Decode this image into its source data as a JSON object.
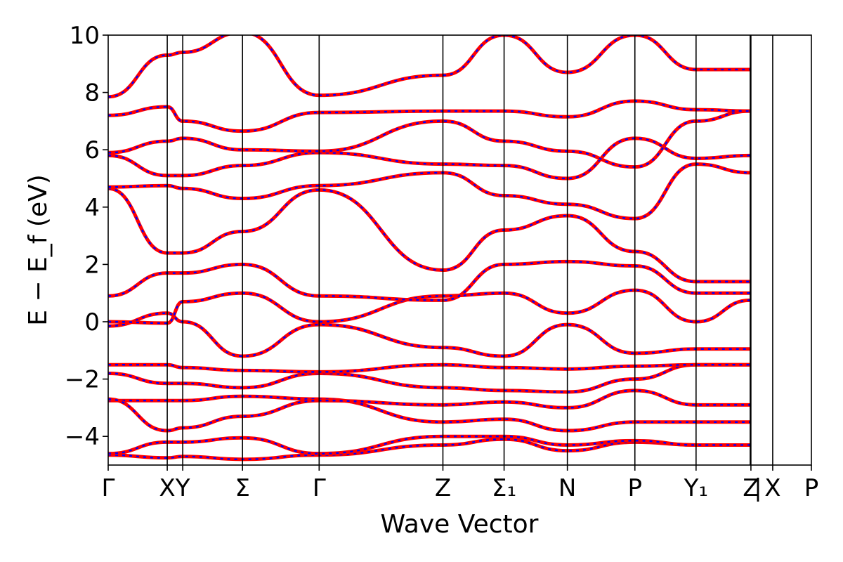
{
  "chart_data": {
    "type": "line",
    "title": "",
    "xlabel": "Wave Vector",
    "ylabel": "E − E_f (eV)",
    "ylim": [
      -5,
      10
    ],
    "yticks": [
      -4,
      -2,
      0,
      2,
      4,
      6,
      8,
      10
    ],
    "ytick_labels": [
      "−4",
      "−2",
      "0",
      "2",
      "4",
      "6",
      "8",
      "10"
    ],
    "xlim": [
      0,
      100
    ],
    "kpoints": [
      {
        "label": "Γ",
        "x": 0
      },
      {
        "label": "X",
        "x": 8.4
      },
      {
        "label": "Y",
        "x": 10.6
      },
      {
        "label": "Σ",
        "x": 19.1
      },
      {
        "label": "Γ",
        "x": 30.0
      },
      {
        "label": "Z",
        "x": 47.6
      },
      {
        "label": "Σ₁",
        "x": 56.3
      },
      {
        "label": "N",
        "x": 65.3
      },
      {
        "label": "P",
        "x": 74.9
      },
      {
        "label": "Y₁",
        "x": 83.6
      },
      {
        "label": "Z",
        "x": 91.4
      },
      {
        "label": "|",
        "x": 92.4
      },
      {
        "label": "X",
        "x": 94.5
      },
      {
        "label": "P",
        "x": 100
      }
    ],
    "path_break_x": 91.3,
    "grid": false,
    "series_colors": {
      "band": "#ff0000",
      "band_dash": "#0000ff"
    },
    "series": [
      {
        "x": [
          0,
          8.4,
          10.6,
          19.1,
          30.0,
          47.6,
          56.3,
          65.3,
          74.9,
          83.6,
          91.3
        ],
        "y": [
          -4.65,
          -4.75,
          -4.7,
          -4.8,
          -4.65,
          -4.3,
          -4.1,
          -4.5,
          -4.2,
          -4.3,
          -4.3
        ]
      },
      {
        "x": [
          0,
          8.4,
          10.6,
          19.1,
          30.0,
          47.6,
          56.3,
          65.3,
          74.9,
          83.6,
          91.3
        ],
        "y": [
          -4.6,
          -4.2,
          -4.2,
          -4.05,
          -4.6,
          -4.0,
          -4.0,
          -4.3,
          -4.15,
          -4.3,
          -4.3
        ]
      },
      {
        "x": [
          0,
          8.4,
          10.6,
          19.1,
          30.0,
          47.6,
          56.3,
          65.3,
          74.9,
          83.6,
          91.3
        ],
        "y": [
          -2.75,
          -2.75,
          -2.75,
          -2.6,
          -2.7,
          -3.5,
          -3.4,
          -3.8,
          -3.5,
          -3.5,
          -3.5
        ]
      },
      {
        "x": [
          0,
          8.4,
          10.6,
          19.1,
          30.0,
          47.6,
          56.3,
          65.3,
          74.9,
          83.6,
          91.3
        ],
        "y": [
          -2.7,
          -3.8,
          -3.7,
          -3.3,
          -2.75,
          -2.9,
          -2.8,
          -3.0,
          -2.4,
          -2.9,
          -2.9
        ]
      },
      {
        "x": [
          0,
          8.4,
          10.6,
          19.1,
          30.0,
          47.6,
          56.3,
          65.3,
          74.9,
          83.6,
          91.3
        ],
        "y": [
          -1.8,
          -2.15,
          -2.15,
          -2.3,
          -1.8,
          -2.3,
          -2.4,
          -2.45,
          -2.0,
          -1.5,
          -1.5
        ]
      },
      {
        "x": [
          0,
          8.4,
          10.6,
          19.1,
          30.0,
          47.6,
          56.3,
          65.3,
          74.9,
          83.6,
          91.3
        ],
        "y": [
          -1.5,
          -1.5,
          -1.6,
          -1.7,
          -1.75,
          -1.5,
          -1.6,
          -1.65,
          -1.55,
          -1.5,
          -1.5
        ]
      },
      {
        "x": [
          0,
          8.4,
          10.6,
          19.1,
          30.0,
          47.6,
          56.3,
          65.3,
          74.9,
          83.6,
          91.3
        ],
        "y": [
          -0.15,
          0.3,
          0.0,
          -1.2,
          -0.1,
          -0.9,
          -1.2,
          -0.1,
          -1.1,
          -0.95,
          -0.95
        ]
      },
      {
        "x": [
          0,
          8.4,
          10.6,
          19.1,
          30.0,
          47.6,
          56.3,
          65.3,
          74.9,
          83.6,
          91.3
        ],
        "y": [
          0.0,
          -0.05,
          0.7,
          1.0,
          0.0,
          0.9,
          1.0,
          0.3,
          1.1,
          0.0,
          0.75
        ]
      },
      {
        "x": [
          0,
          8.4,
          10.6,
          19.1,
          30.0,
          47.6,
          56.3,
          65.3,
          74.9,
          83.6,
          91.3
        ],
        "y": [
          0.9,
          1.7,
          1.7,
          2.0,
          0.9,
          0.75,
          2.0,
          2.1,
          1.95,
          1.0,
          1.0
        ]
      },
      {
        "x": [
          0,
          8.4,
          10.6,
          19.1,
          30.0,
          47.6,
          56.3,
          65.3,
          74.9,
          83.6,
          91.3
        ],
        "y": [
          4.65,
          2.4,
          2.4,
          3.15,
          4.6,
          1.8,
          3.2,
          3.7,
          2.45,
          1.4,
          1.4
        ]
      },
      {
        "x": [
          0,
          8.4,
          10.6,
          19.1,
          30.0,
          47.6,
          56.3,
          65.3,
          74.9,
          83.6,
          91.3
        ],
        "y": [
          4.7,
          4.75,
          4.65,
          4.3,
          4.75,
          5.2,
          4.4,
          4.1,
          3.6,
          5.5,
          5.2
        ]
      },
      {
        "x": [
          0,
          8.4,
          10.6,
          19.1,
          30.0,
          47.6,
          56.3,
          65.3,
          74.9,
          83.6,
          91.3
        ],
        "y": [
          5.8,
          5.1,
          5.1,
          5.45,
          5.9,
          5.5,
          5.45,
          5.0,
          6.4,
          5.7,
          5.8
        ]
      },
      {
        "x": [
          0,
          8.4,
          10.6,
          19.1,
          30.0,
          47.6,
          56.3,
          65.3,
          74.9,
          83.6,
          91.3
        ],
        "y": [
          5.9,
          6.3,
          6.4,
          6.0,
          5.95,
          7.0,
          6.3,
          5.95,
          5.4,
          7.0,
          7.35
        ]
      },
      {
        "x": [
          0,
          8.4,
          10.6,
          19.1,
          30.0,
          47.6,
          56.3,
          65.3,
          74.9,
          83.6,
          91.3
        ],
        "y": [
          7.2,
          7.5,
          7.0,
          6.65,
          7.3,
          7.35,
          7.35,
          7.15,
          7.7,
          7.4,
          7.35
        ]
      },
      {
        "x": [
          0,
          8.4,
          10.6,
          19.1,
          30.0,
          47.6,
          56.3,
          65.3,
          74.9,
          83.6,
          91.3
        ],
        "y": [
          7.85,
          9.3,
          9.4,
          10.1,
          7.9,
          8.6,
          10.0,
          8.7,
          10.0,
          8.8,
          8.8
        ]
      }
    ]
  }
}
